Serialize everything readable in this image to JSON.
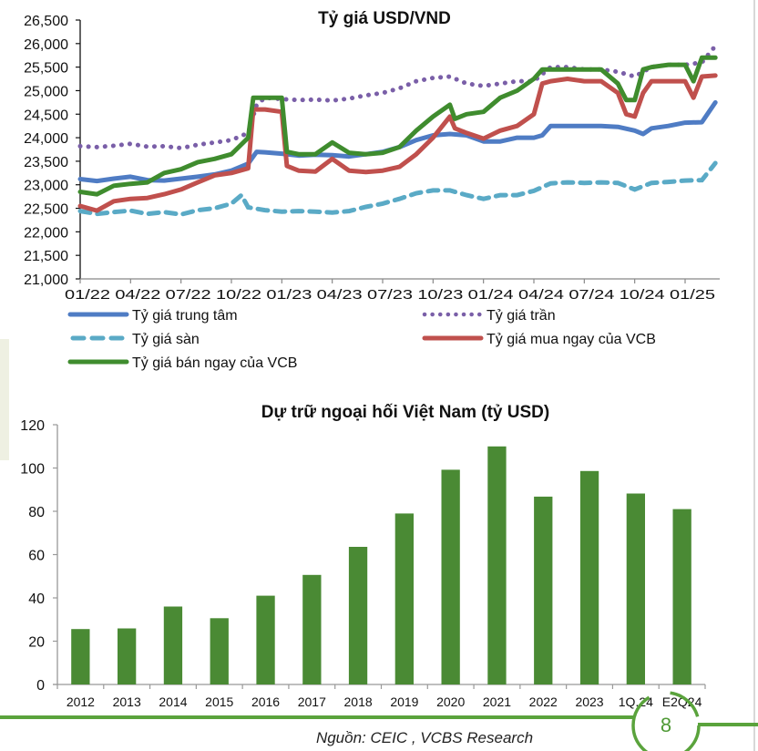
{
  "chart_data": [
    {
      "type": "line",
      "title": "Tỷ giá USD/VND",
      "xlabel": "",
      "ylabel": "",
      "ylim": [
        21000,
        26500
      ],
      "y_ticks": [
        "26,500",
        "26,000",
        "25,500",
        "25,000",
        "24,500",
        "24,000",
        "23,500",
        "23,000",
        "22,500",
        "22,000",
        "21,500",
        "21,000"
      ],
      "y_tick_values": [
        26500,
        26000,
        25500,
        25000,
        24500,
        24000,
        23500,
        23000,
        22500,
        22000,
        21500,
        21000
      ],
      "x_tick_labels": [
        "01/22",
        "04/22",
        "07/22",
        "10/22",
        "01/23",
        "04/23",
        "07/23",
        "10/23",
        "01/24",
        "04/24",
        "07/24",
        "10/24",
        "01/25"
      ],
      "x_tick_months": [
        0,
        3,
        6,
        9,
        12,
        15,
        18,
        21,
        24,
        27,
        30,
        33,
        36
      ],
      "xlim_months": [
        0,
        38
      ],
      "x_unit": "months since 01/22",
      "legend_position": "bottom",
      "series": [
        {
          "name": "Tỷ giá trung tâm",
          "color": "#4f7cc4",
          "style": "solid",
          "x": [
            0,
            1,
            2,
            3,
            4,
            5,
            6,
            7,
            8,
            9,
            10,
            10.5,
            11,
            12,
            13,
            14,
            15,
            16,
            17,
            18,
            19,
            20,
            21,
            22,
            23,
            24,
            25,
            26,
            27,
            27.5,
            28,
            29,
            30,
            31,
            32,
            33,
            33.5,
            34,
            35,
            36,
            37,
            37.8
          ],
          "y": [
            23120,
            23080,
            23130,
            23170,
            23100,
            23090,
            23130,
            23170,
            23220,
            23300,
            23450,
            23700,
            23690,
            23660,
            23620,
            23640,
            23630,
            23600,
            23650,
            23700,
            23800,
            23950,
            24050,
            24080,
            24050,
            23920,
            23920,
            24000,
            24000,
            24050,
            24250,
            24250,
            24250,
            24250,
            24230,
            24150,
            24080,
            24200,
            24250,
            24320,
            24330,
            24750
          ]
        },
        {
          "name": "Tỷ giá trần",
          "color": "#7a5fa8",
          "style": "dotted",
          "x": [
            0,
            1,
            2,
            3,
            4,
            5,
            6,
            7,
            8,
            9,
            10,
            10.5,
            11,
            12,
            13,
            14,
            15,
            16,
            17,
            18,
            19,
            20,
            21,
            22,
            23,
            24,
            25,
            26,
            27,
            28,
            29,
            30,
            31,
            32,
            33,
            34,
            35,
            36,
            37,
            37.8
          ],
          "y": [
            23820,
            23800,
            23830,
            23870,
            23810,
            23820,
            23780,
            23850,
            23900,
            23950,
            24100,
            24700,
            24850,
            24820,
            24800,
            24810,
            24790,
            24830,
            24900,
            24950,
            25050,
            25200,
            25270,
            25300,
            25150,
            25100,
            25150,
            25200,
            25200,
            25500,
            25500,
            25450,
            25450,
            25400,
            25300,
            25500,
            25550,
            25550,
            25600,
            25950
          ]
        },
        {
          "name": "Tỷ giá sàn",
          "color": "#5aaac6",
          "style": "dashed",
          "x": [
            0,
            1,
            2,
            3,
            4,
            5,
            6,
            7,
            8,
            9,
            9.6,
            10,
            11,
            12,
            13,
            14,
            15,
            16,
            17,
            18,
            19,
            20,
            21,
            22,
            23,
            24,
            25,
            26,
            27,
            28,
            29,
            30,
            31,
            32,
            33,
            34,
            35,
            36,
            37,
            37.8
          ],
          "y": [
            22440,
            22380,
            22420,
            22450,
            22380,
            22420,
            22370,
            22460,
            22500,
            22600,
            22780,
            22520,
            22460,
            22430,
            22440,
            22430,
            22410,
            22440,
            22530,
            22600,
            22700,
            22820,
            22880,
            22880,
            22780,
            22700,
            22780,
            22780,
            22870,
            23030,
            23050,
            23040,
            23050,
            23040,
            22900,
            23040,
            23060,
            23090,
            23100,
            23460
          ]
        },
        {
          "name": "Tỷ giá mua ngay của VCB",
          "color": "#c0504d",
          "style": "solid",
          "x": [
            0,
            1,
            2,
            3,
            4,
            5,
            6,
            7,
            8,
            9,
            10,
            10.3,
            11,
            12,
            12.3,
            13,
            14,
            15,
            16,
            17,
            18,
            19,
            20,
            21,
            22,
            22.3,
            23,
            24,
            25,
            26,
            27,
            27.5,
            28,
            29,
            30,
            31,
            32,
            32.5,
            33,
            33.5,
            34,
            35,
            36,
            36.5,
            37,
            37.8
          ],
          "y": [
            22550,
            22450,
            22650,
            22700,
            22720,
            22800,
            22900,
            23050,
            23200,
            23250,
            23350,
            24600,
            24600,
            24550,
            23400,
            23300,
            23280,
            23550,
            23300,
            23270,
            23300,
            23380,
            23650,
            24000,
            24450,
            24200,
            24100,
            23980,
            24150,
            24250,
            24500,
            25150,
            25200,
            25250,
            25200,
            25200,
            24950,
            24500,
            24450,
            24950,
            25200,
            25200,
            25200,
            24850,
            25300,
            25320
          ]
        },
        {
          "name": "Tỷ giá bán ngay của VCB",
          "color": "#3f8c2e",
          "style": "solid",
          "x": [
            0,
            1,
            2,
            3,
            4,
            5,
            6,
            7,
            8,
            9,
            10,
            10.3,
            11,
            12,
            12.3,
            13,
            14,
            15,
            16,
            17,
            18,
            19,
            20,
            21,
            22,
            22.3,
            23,
            24,
            25,
            26,
            27,
            27.5,
            28,
            29,
            30,
            31,
            32,
            32.5,
            33,
            33.5,
            34,
            35,
            36,
            36.5,
            37,
            37.8
          ],
          "y": [
            22850,
            22800,
            22980,
            23020,
            23050,
            23250,
            23330,
            23480,
            23550,
            23650,
            24000,
            24850,
            24850,
            24850,
            23700,
            23650,
            23650,
            23900,
            23680,
            23650,
            23680,
            23800,
            24150,
            24450,
            24700,
            24400,
            24500,
            24550,
            24850,
            25000,
            25250,
            25450,
            25450,
            25450,
            25450,
            25450,
            25150,
            24800,
            24800,
            25450,
            25500,
            25550,
            25550,
            25200,
            25700,
            25700
          ]
        }
      ]
    },
    {
      "type": "bar",
      "title": "Dự trữ ngoại hối Việt Nam (tỷ USD)",
      "xlabel": "",
      "ylabel": "",
      "ylim": [
        0,
        120
      ],
      "y_ticks": [
        "120",
        "100",
        "80",
        "60",
        "40",
        "20",
        "0"
      ],
      "y_tick_values": [
        120,
        100,
        80,
        60,
        40,
        20,
        0
      ],
      "categories": [
        "2012",
        "2013",
        "2014",
        "2015",
        "2016",
        "2017",
        "2018",
        "2019",
        "2020",
        "2021",
        "2022",
        "2023",
        "1Q.24",
        "E2Q24"
      ],
      "values": [
        25.6,
        25.9,
        36,
        30.6,
        41,
        50.6,
        63.6,
        79,
        99.2,
        110,
        86.8,
        98.6,
        88.2,
        81
      ],
      "color": "#4a8a34",
      "grid": false
    }
  ],
  "footer": {
    "source": "Nguồn: CEIC , VCBS Research",
    "page_number": "8",
    "accent_color": "#5aa33c"
  }
}
